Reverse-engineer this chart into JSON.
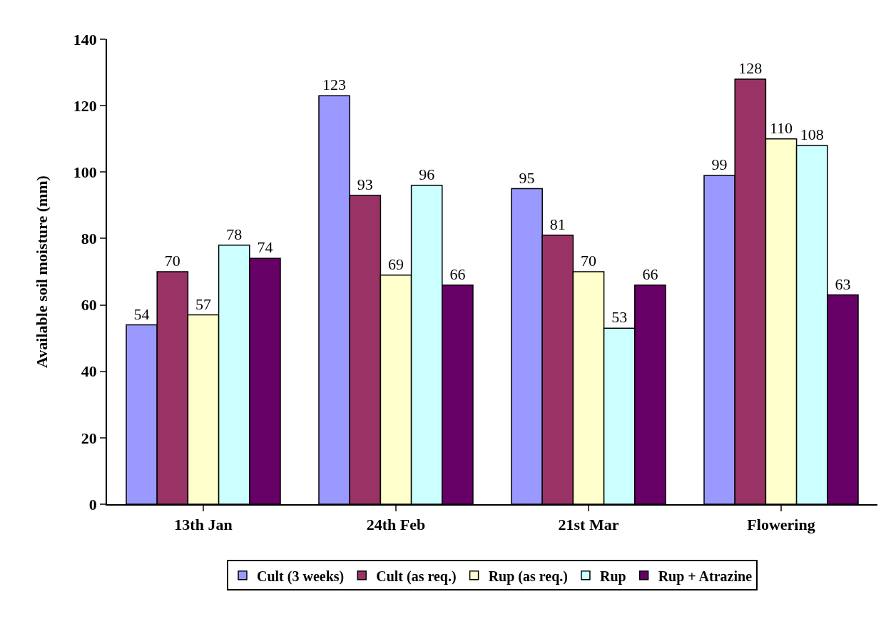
{
  "chart_data": {
    "type": "bar",
    "ylabel": "Available soil moisture (mm)",
    "categories": [
      "13th Jan",
      "24th Feb",
      "21st Mar",
      "Flowering"
    ],
    "series": [
      {
        "name": "Cult (3 weeks)",
        "color": "#9999ff",
        "values": [
          54,
          123,
          95,
          99
        ]
      },
      {
        "name": "Cult (as req.)",
        "color": "#993366",
        "values": [
          70,
          93,
          81,
          128
        ]
      },
      {
        "name": "Rup (as req.)",
        "color": "#ffffcc",
        "values": [
          57,
          69,
          70,
          110
        ]
      },
      {
        "name": "Rup",
        "color": "#ccffff",
        "values": [
          78,
          96,
          53,
          108
        ]
      },
      {
        "name": "Rup + Atrazine",
        "color": "#660066",
        "values": [
          74,
          66,
          66,
          63
        ]
      }
    ],
    "ylim": [
      0,
      140
    ],
    "yticks": [
      0,
      20,
      40,
      60,
      80,
      100,
      120,
      140
    ],
    "data_labels": true,
    "grid": false,
    "legend": "bottom"
  }
}
